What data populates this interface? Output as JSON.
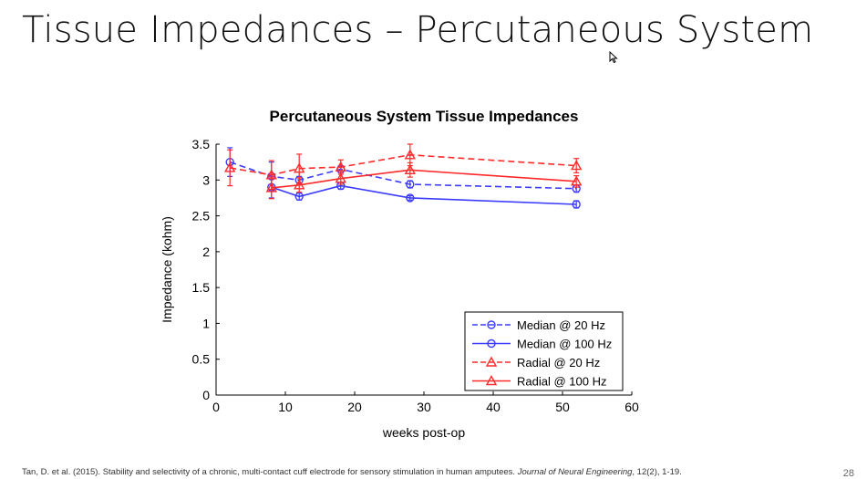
{
  "slide": {
    "title": "Tissue Impedances – Percutaneous System",
    "citation_prefix": "Tan, D. et al. (2015). Stability and selectivity of a chronic, multi-contact cuff electrode for sensory stimulation in human amputees. ",
    "citation_journal": "Journal of Neural Engineering",
    "citation_suffix": ", 12(2), 1-19.",
    "page_number": "28"
  },
  "chart_data": {
    "type": "line",
    "title": "Percutaneous System Tissue Impedances",
    "xlabel": "weeks post-op",
    "ylabel": "Impedance (kohm)",
    "xlim": [
      0,
      60
    ],
    "ylim": [
      0,
      3.5
    ],
    "xticks": [
      0,
      10,
      20,
      30,
      40,
      50,
      60
    ],
    "yticks": [
      0,
      0.5,
      1,
      1.5,
      2,
      2.5,
      3,
      3.5
    ],
    "xtick_labels": [
      "0",
      "10",
      "20",
      "30",
      "40",
      "50",
      "60"
    ],
    "ytick_labels": [
      "0",
      "0.5",
      "1",
      "1.5",
      "2",
      "2.5",
      "3",
      "3.5"
    ],
    "grid": false,
    "legend_position": "bottom-right",
    "series": [
      {
        "name": "Median @ 20 Hz",
        "color": "#3b3bff",
        "dash": "dashed",
        "marker": "circle",
        "x": [
          2,
          8,
          12,
          18,
          28,
          52
        ],
        "y": [
          3.25,
          3.05,
          3.0,
          3.15,
          2.94,
          2.88
        ],
        "err": [
          0.2,
          0.2,
          0.05,
          0.05,
          0.05,
          0.05
        ]
      },
      {
        "name": "Median @ 100 Hz",
        "color": "#3b3bff",
        "dash": "solid",
        "marker": "circle",
        "x": [
          8,
          12,
          18,
          28,
          52
        ],
        "y": [
          2.9,
          2.77,
          2.92,
          2.75,
          2.66
        ],
        "err": [
          0.15,
          0.05,
          0.05,
          0.03,
          0.05
        ]
      },
      {
        "name": "Radial @ 20 Hz",
        "color": "#ff2a2a",
        "dash": "dashed",
        "marker": "triangle",
        "x": [
          2,
          8,
          12,
          18,
          28,
          52
        ],
        "y": [
          3.17,
          3.07,
          3.16,
          3.18,
          3.35,
          3.2
        ],
        "err": [
          0.25,
          0.2,
          0.2,
          0.1,
          0.15,
          0.1
        ]
      },
      {
        "name": "Radial @ 100 Hz",
        "color": "#ff2a2a",
        "dash": "solid",
        "marker": "triangle",
        "x": [
          8,
          12,
          18,
          28,
          52
        ],
        "y": [
          2.89,
          2.93,
          3.02,
          3.14,
          2.98
        ],
        "err": [
          0.15,
          0.1,
          0.08,
          0.1,
          0.08
        ]
      }
    ]
  }
}
